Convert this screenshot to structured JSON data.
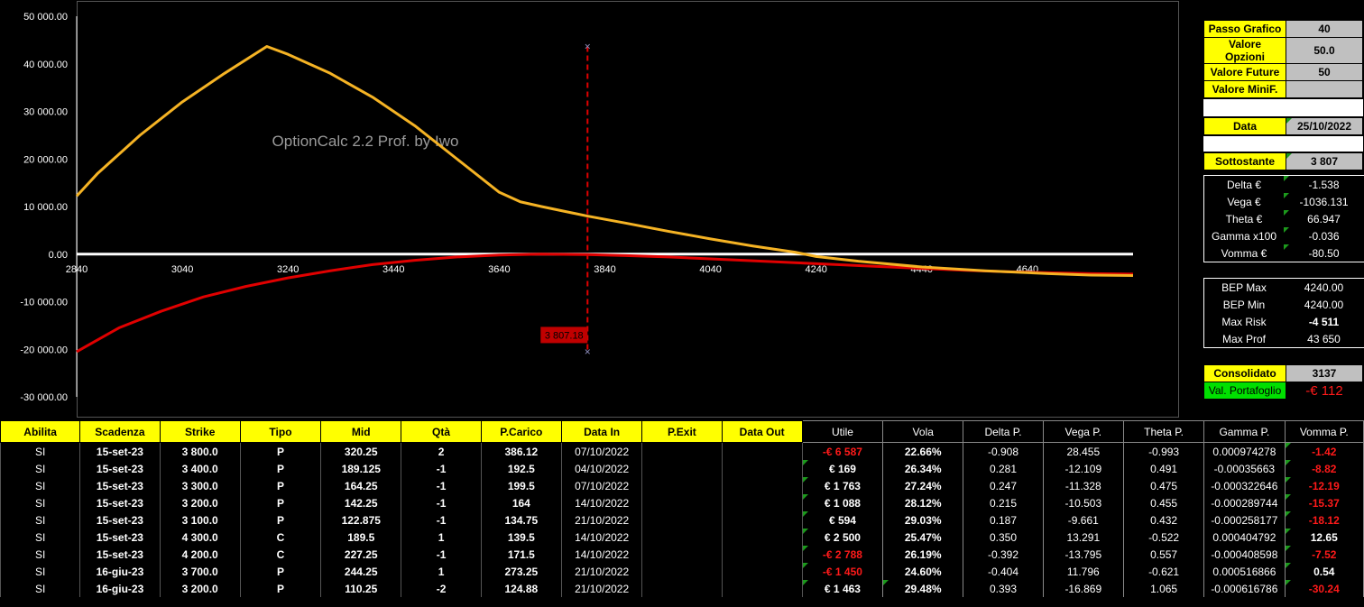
{
  "chart_data": {
    "type": "line",
    "watermark": "OptionCalc 2.2 Prof. by Iwo",
    "x_ticks": [
      "2840",
      "3040",
      "3240",
      "3440",
      "3640",
      "3840",
      "4040",
      "4240",
      "4440",
      "4640"
    ],
    "y_ticks": [
      "50 000.00",
      "40 000.00",
      "30 000.00",
      "20 000.00",
      "10 000.00",
      "0.00",
      "-10 000.00",
      "-20 000.00",
      "-30 000.00"
    ],
    "xlim": [
      2840,
      4840
    ],
    "ylim": [
      -30000,
      50000
    ],
    "marker_label": "3 807.18",
    "marker_x": 3807.18,
    "series": [
      {
        "color": "#f5b324",
        "x": [
          2840,
          2880,
          2960,
          3040,
          3120,
          3200,
          3240,
          3320,
          3400,
          3480,
          3560,
          3640,
          3680,
          3720,
          3807,
          3880,
          3960,
          4040,
          4120,
          4200,
          4240,
          4320,
          4440,
          4560,
          4680,
          4760,
          4840
        ],
        "y": [
          12200,
          17000,
          25000,
          32000,
          38000,
          43650,
          42000,
          38000,
          33000,
          27000,
          20000,
          13000,
          11000,
          10000,
          8000,
          6500,
          4800,
          3200,
          1700,
          400,
          -500,
          -1500,
          -2700,
          -3500,
          -4100,
          -4400,
          -4511
        ]
      },
      {
        "color": "#e00000",
        "x": [
          2840,
          2920,
          3000,
          3080,
          3160,
          3240,
          3320,
          3400,
          3480,
          3560,
          3640,
          3720,
          3807,
          3880,
          3960,
          4040,
          4120,
          4200,
          4280,
          4360,
          4440,
          4520,
          4600,
          4680,
          4760,
          4840
        ],
        "y": [
          -20500,
          -15500,
          -12000,
          -9000,
          -6800,
          -5000,
          -3500,
          -2200,
          -1300,
          -600,
          -200,
          0,
          -100,
          -300,
          -600,
          -1000,
          -1400,
          -1800,
          -2200,
          -2600,
          -3000,
          -3400,
          -3700,
          -3900,
          -4100,
          -4200
        ]
      },
      {
        "color": "#ffffff",
        "x": [
          2840,
          4840
        ],
        "y": [
          0,
          0
        ]
      }
    ]
  },
  "settings": {
    "passo_grafico_label": "Passo Grafico",
    "passo_grafico": "40",
    "valore_opzioni_label": "Valore Opzioni",
    "valore_opzioni": "50.0",
    "valore_future_label": "Valore Future",
    "valore_future": "50",
    "valore_minif_label": "Valore MiniF.",
    "valore_minif": "",
    "data_label": "Data",
    "data": "25/10/2022",
    "sottostante_label": "Sottostante",
    "sottostante": "3 807"
  },
  "greeks": [
    {
      "label": "Delta €",
      "value": "-1.538"
    },
    {
      "label": "Vega €",
      "value": "-1036.131"
    },
    {
      "label": "Theta €",
      "value": "66.947"
    },
    {
      "label": "Gamma x100",
      "value": "-0.036"
    },
    {
      "label": "Vomma €",
      "value": "-80.50"
    }
  ],
  "bep": [
    {
      "label": "BEP Max",
      "value": "4240.00",
      "neg": false
    },
    {
      "label": "BEP Min",
      "value": "4240.00",
      "neg": false
    },
    {
      "label": "Max Risk",
      "value": "-4 511",
      "neg": true
    },
    {
      "label": "Max Prof",
      "value": "43 650",
      "neg": false
    }
  ],
  "consolidato_label": "Consolidato",
  "consolidato": "3137",
  "portafoglio_label": "Val. Portafoglio",
  "portafoglio": "-€ 112",
  "headers": [
    "Abilita",
    "Scadenza",
    "Strike",
    "Tipo",
    "Mid",
    "Qtà",
    "P.Carico",
    "Data In",
    "P.Exit",
    "Data Out",
    "Utile",
    "Vola",
    "Delta P.",
    "Vega P.",
    "Theta P.",
    "Gamma P.",
    "Vomma P."
  ],
  "rows": [
    [
      "SI",
      "15-set-23",
      "3 800.0",
      "P",
      "320.25",
      "2",
      "386.12",
      "07/10/2022",
      "",
      "",
      "-€ 6 587",
      "22.66%",
      "-0.908",
      "28.455",
      "-0.993",
      "0.000974278",
      "-1.42"
    ],
    [
      "SI",
      "15-set-23",
      "3 400.0",
      "P",
      "189.125",
      "-1",
      "192.5",
      "04/10/2022",
      "",
      "",
      "€ 169",
      "26.34%",
      "0.281",
      "-12.109",
      "0.491",
      "-0.00035663",
      "-8.82"
    ],
    [
      "SI",
      "15-set-23",
      "3 300.0",
      "P",
      "164.25",
      "-1",
      "199.5",
      "07/10/2022",
      "",
      "",
      "€ 1 763",
      "27.24%",
      "0.247",
      "-11.328",
      "0.475",
      "-0.000322646",
      "-12.19"
    ],
    [
      "SI",
      "15-set-23",
      "3 200.0",
      "P",
      "142.25",
      "-1",
      "164",
      "14/10/2022",
      "",
      "",
      "€ 1 088",
      "28.12%",
      "0.215",
      "-10.503",
      "0.455",
      "-0.000289744",
      "-15.37"
    ],
    [
      "SI",
      "15-set-23",
      "3 100.0",
      "P",
      "122.875",
      "-1",
      "134.75",
      "21/10/2022",
      "",
      "",
      "€ 594",
      "29.03%",
      "0.187",
      "-9.661",
      "0.432",
      "-0.000258177",
      "-18.12"
    ],
    [
      "SI",
      "15-set-23",
      "4 300.0",
      "C",
      "189.5",
      "1",
      "139.5",
      "14/10/2022",
      "",
      "",
      "€ 2 500",
      "25.47%",
      "0.350",
      "13.291",
      "-0.522",
      "0.000404792",
      "12.65"
    ],
    [
      "SI",
      "15-set-23",
      "4 200.0",
      "C",
      "227.25",
      "-1",
      "171.5",
      "14/10/2022",
      "",
      "",
      "-€ 2 788",
      "26.19%",
      "-0.392",
      "-13.795",
      "0.557",
      "-0.000408598",
      "-7.52"
    ],
    [
      "SI",
      "16-giu-23",
      "3 700.0",
      "P",
      "244.25",
      "1",
      "273.25",
      "21/10/2022",
      "",
      "",
      "-€ 1 450",
      "24.60%",
      "-0.404",
      "11.796",
      "-0.621",
      "0.000516866",
      "0.54"
    ],
    [
      "SI",
      "16-giu-23",
      "3 200.0",
      "P",
      "110.25",
      "-2",
      "124.88",
      "21/10/2022",
      "",
      "",
      "€ 1 463",
      "29.48%",
      "0.393",
      "-16.869",
      "1.065",
      "-0.000616786",
      "-30.24"
    ]
  ]
}
